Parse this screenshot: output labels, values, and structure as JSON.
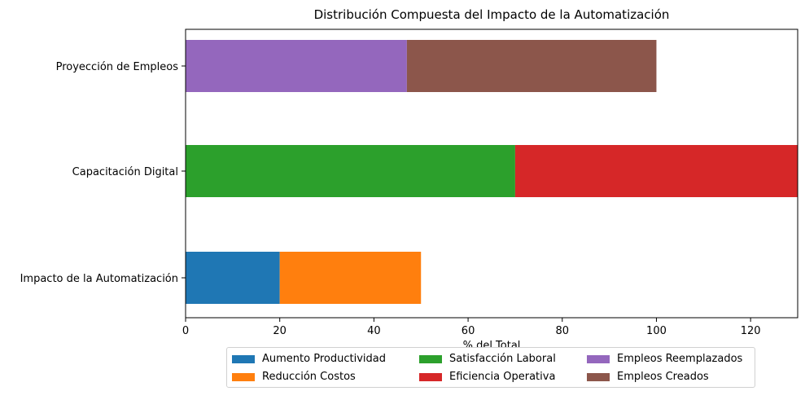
{
  "chart_data": {
    "type": "bar",
    "orientation": "horizontal",
    "stacked": true,
    "title": "Distribución Compuesta del Impacto de la Automatización",
    "xlabel": "% del Total",
    "ylabel": "",
    "xlim": [
      0,
      130
    ],
    "xticks": [
      0,
      20,
      40,
      60,
      80,
      100,
      120
    ],
    "categories": [
      "Impacto de la Automatización",
      "Capacitación Digital",
      "Proyección de Empleos"
    ],
    "series": [
      {
        "name": "Aumento Productividad",
        "color": "#1f77b4",
        "values": [
          20,
          0,
          0
        ]
      },
      {
        "name": "Reducción Costos",
        "color": "#ff7f0e",
        "values": [
          30,
          0,
          0
        ]
      },
      {
        "name": "Satisfacción Laboral",
        "color": "#2ca02c",
        "values": [
          0,
          70,
          0
        ]
      },
      {
        "name": "Eficiencia Operativa",
        "color": "#d62728",
        "values": [
          0,
          60,
          0
        ]
      },
      {
        "name": "Empleos Reemplazados",
        "color": "#9467bd",
        "values": [
          0,
          0,
          47
        ]
      },
      {
        "name": "Empleos Creados",
        "color": "#8c564b",
        "values": [
          0,
          0,
          53
        ]
      }
    ],
    "grid": false,
    "legend_position": "bottom-center",
    "legend_columns": 3
  }
}
